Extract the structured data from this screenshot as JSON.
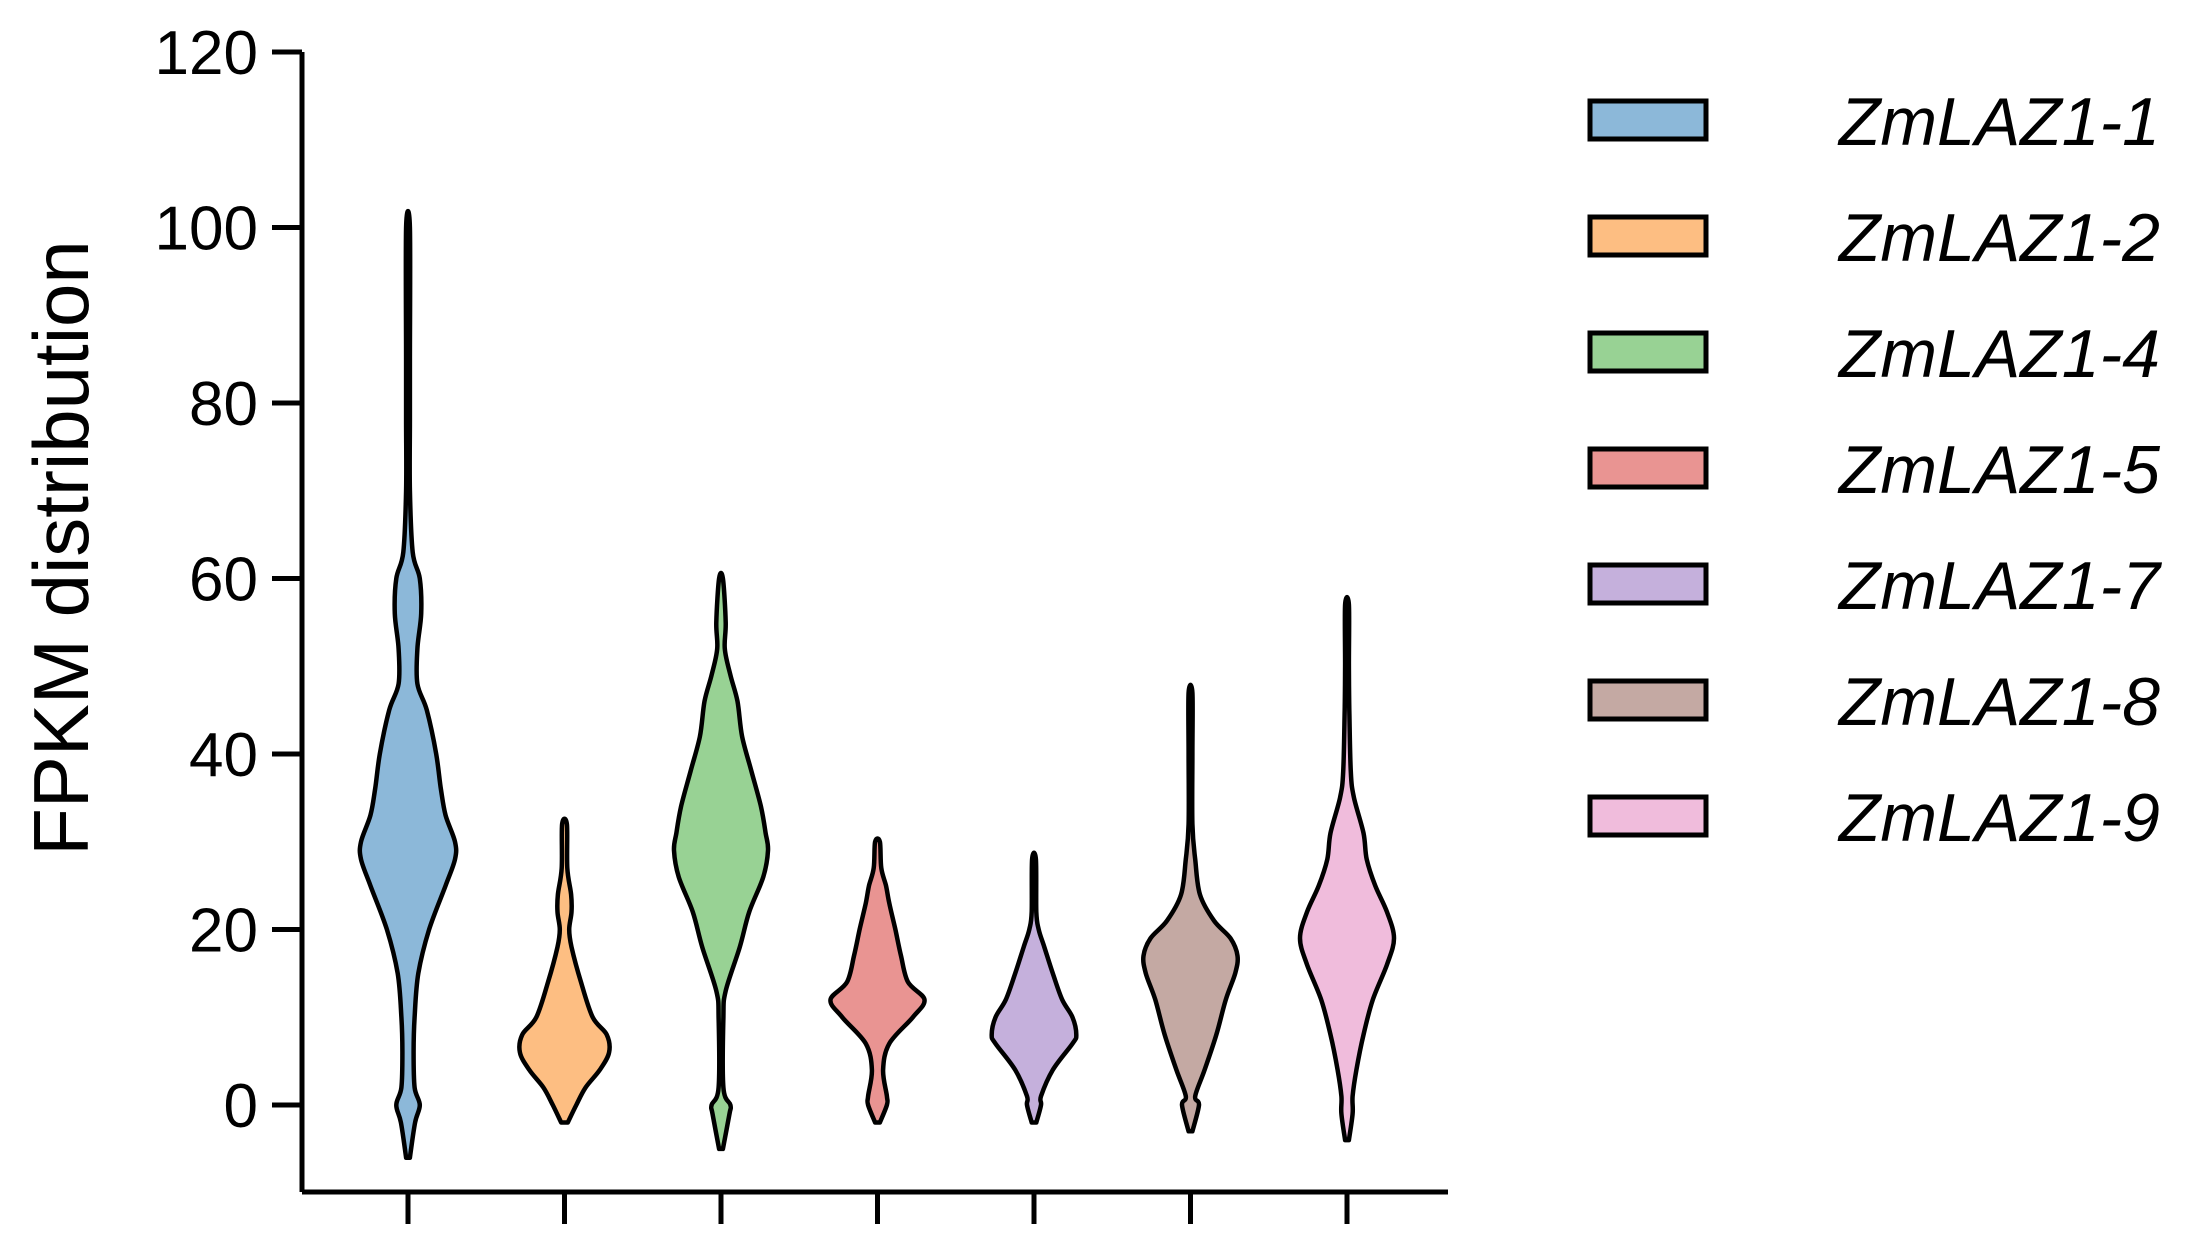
{
  "chart_data": {
    "type": "violin",
    "ylabel": "FPKM distribution",
    "xlabel": "",
    "ylim": [
      -10,
      120
    ],
    "yticks": [
      0,
      20,
      40,
      60,
      80,
      100,
      120
    ],
    "grid": false,
    "legend_position": "right",
    "series": [
      {
        "name": "ZmLAZ1-1",
        "color": "#8cb8d9",
        "min": -6,
        "max": 100,
        "profile": [
          [
            -6,
            0.04
          ],
          [
            -2,
            0.15
          ],
          [
            0,
            0.25
          ],
          [
            2,
            0.14
          ],
          [
            6,
            0.12
          ],
          [
            10,
            0.14
          ],
          [
            15,
            0.22
          ],
          [
            20,
            0.45
          ],
          [
            25,
            0.8
          ],
          [
            28,
            1.0
          ],
          [
            30,
            1.0
          ],
          [
            33,
            0.8
          ],
          [
            36,
            0.7
          ],
          [
            40,
            0.6
          ],
          [
            45,
            0.4
          ],
          [
            48,
            0.2
          ],
          [
            52,
            0.2
          ],
          [
            56,
            0.28
          ],
          [
            60,
            0.25
          ],
          [
            63,
            0.1
          ],
          [
            70,
            0.04
          ],
          [
            78,
            0.04
          ],
          [
            85,
            0.04
          ],
          [
            100,
            0.04
          ]
        ]
      },
      {
        "name": "ZmLAZ1-2",
        "color": "#fdbe82",
        "min": -2,
        "max": 32,
        "profile": [
          [
            -2,
            0.07
          ],
          [
            0,
            0.25
          ],
          [
            2,
            0.45
          ],
          [
            4,
            0.75
          ],
          [
            6,
            0.95
          ],
          [
            8,
            0.9
          ],
          [
            10,
            0.6
          ],
          [
            14,
            0.35
          ],
          [
            18,
            0.15
          ],
          [
            20,
            0.1
          ],
          [
            22,
            0.15
          ],
          [
            24,
            0.14
          ],
          [
            27,
            0.06
          ],
          [
            32,
            0.05
          ]
        ]
      },
      {
        "name": "ZmLAZ1-4",
        "color": "#98d294",
        "min": -5,
        "max": 60,
        "profile": [
          [
            -5,
            0.04
          ],
          [
            -1,
            0.18
          ],
          [
            0,
            0.2
          ],
          [
            2,
            0.05
          ],
          [
            10,
            0.05
          ],
          [
            13,
            0.1
          ],
          [
            18,
            0.4
          ],
          [
            22,
            0.6
          ],
          [
            26,
            0.9
          ],
          [
            29,
            1.0
          ],
          [
            31,
            0.95
          ],
          [
            34,
            0.85
          ],
          [
            38,
            0.65
          ],
          [
            42,
            0.45
          ],
          [
            46,
            0.35
          ],
          [
            49,
            0.2
          ],
          [
            52,
            0.08
          ],
          [
            55,
            0.1
          ],
          [
            60,
            0.04
          ]
        ]
      },
      {
        "name": "ZmLAZ1-5",
        "color": "#e99492",
        "min": -2,
        "max": 30,
        "profile": [
          [
            -2,
            0.05
          ],
          [
            0,
            0.2
          ],
          [
            1,
            0.2
          ],
          [
            4,
            0.12
          ],
          [
            7,
            0.25
          ],
          [
            10,
            0.75
          ],
          [
            12,
            1.0
          ],
          [
            14,
            0.65
          ],
          [
            17,
            0.5
          ],
          [
            20,
            0.38
          ],
          [
            23,
            0.25
          ],
          [
            25,
            0.18
          ],
          [
            27,
            0.08
          ],
          [
            30,
            0.05
          ]
        ]
      },
      {
        "name": "ZmLAZ1-7",
        "color": "#c5b0dc",
        "min": -2,
        "max": 28,
        "profile": [
          [
            -2,
            0.05
          ],
          [
            0,
            0.15
          ],
          [
            1,
            0.15
          ],
          [
            4,
            0.4
          ],
          [
            7,
            0.82
          ],
          [
            8,
            0.9
          ],
          [
            10,
            0.82
          ],
          [
            12,
            0.6
          ],
          [
            15,
            0.4
          ],
          [
            18,
            0.22
          ],
          [
            20,
            0.1
          ],
          [
            22,
            0.05
          ],
          [
            28,
            0.04
          ]
        ]
      },
      {
        "name": "ZmLAZ1-8",
        "color": "#c4a9a3",
        "min": -3,
        "max": 47,
        "profile": [
          [
            -3,
            0.04
          ],
          [
            0,
            0.18
          ],
          [
            1,
            0.1
          ],
          [
            4,
            0.3
          ],
          [
            8,
            0.55
          ],
          [
            12,
            0.75
          ],
          [
            15,
            0.95
          ],
          [
            17,
            1.0
          ],
          [
            19,
            0.85
          ],
          [
            21,
            0.5
          ],
          [
            24,
            0.2
          ],
          [
            28,
            0.1
          ],
          [
            32,
            0.04
          ],
          [
            40,
            0.04
          ],
          [
            47,
            0.04
          ]
        ]
      },
      {
        "name": "ZmLAZ1-9",
        "color": "#f0bcdc",
        "min": -4,
        "max": 57,
        "profile": [
          [
            -4,
            0.04
          ],
          [
            -1,
            0.12
          ],
          [
            1,
            0.12
          ],
          [
            4,
            0.2
          ],
          [
            8,
            0.35
          ],
          [
            12,
            0.55
          ],
          [
            16,
            0.85
          ],
          [
            19,
            1.0
          ],
          [
            22,
            0.85
          ],
          [
            25,
            0.6
          ],
          [
            28,
            0.42
          ],
          [
            31,
            0.35
          ],
          [
            35,
            0.15
          ],
          [
            38,
            0.08
          ],
          [
            45,
            0.05
          ],
          [
            50,
            0.04
          ],
          [
            57,
            0.04
          ]
        ]
      }
    ]
  }
}
